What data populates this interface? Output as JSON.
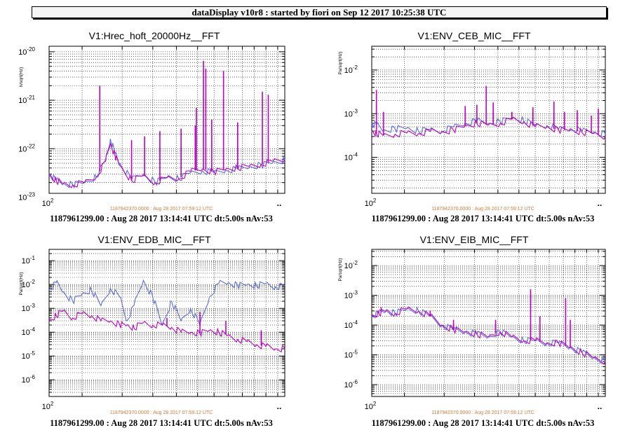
{
  "header": {
    "title": "dataDisplay v10r8 : started by fiori on Sep 12 2017 10:25:38 UTC"
  },
  "chart_data": [
    {
      "type": "line",
      "title": "V1:Hrec_hoft_20000Hz__FFT",
      "ylabel": "h/sqrt(Hz)",
      "yscale": "log",
      "ylim": [
        1.2e-23,
        1.3e-20
      ],
      "y_ticks": [
        "10^-23",
        "10^-22",
        "10^-21",
        "10^-20"
      ],
      "xscale": "log",
      "x_tick_label": "10^2",
      "x_end_label": "..",
      "grid": true,
      "reference_time": "1187942370.0000 : Aug 28 2017 07:59:12 UTC",
      "info": "1187961299.00 : Aug 28 2017 13:14:41 UTC dt:5.00s nAv:53",
      "series": [
        {
          "color": "#5b6be8",
          "x": [
            0,
            0.03,
            0.06,
            0.1,
            0.15,
            0.2,
            0.24,
            0.26,
            0.28,
            0.3,
            0.35,
            0.4,
            0.45,
            0.5,
            0.55,
            0.6,
            0.65,
            0.7,
            0.75,
            0.8,
            0.85,
            0.9,
            0.95,
            1.0
          ],
          "y": [
            3e-23,
            2.2e-23,
            1.9e-23,
            1.8e-23,
            2e-23,
            2.6e-23,
            6e-23,
            1.6e-22,
            8e-23,
            5e-23,
            2.3e-23,
            3e-23,
            2e-23,
            2.6e-23,
            2.4e-23,
            3.2e-23,
            3.5e-23,
            3.2e-23,
            3.6e-23,
            3.8e-23,
            4.2e-23,
            4.6e-23,
            5.2e-23,
            5.8e-23
          ]
        },
        {
          "color": "#c000c8",
          "x": [
            0,
            0.03,
            0.06,
            0.1,
            0.15,
            0.2,
            0.24,
            0.26,
            0.28,
            0.3,
            0.35,
            0.4,
            0.45,
            0.5,
            0.55,
            0.6,
            0.65,
            0.7,
            0.75,
            0.8,
            0.85,
            0.9,
            0.95,
            1.0
          ],
          "y": [
            3e-23,
            2.2e-23,
            1.9e-23,
            1.8e-23,
            2e-23,
            2.6e-23,
            5.5e-23,
            1.3e-22,
            7e-23,
            4.5e-23,
            2.2e-23,
            2.8e-23,
            2e-23,
            2.5e-23,
            2.4e-23,
            3.4e-23,
            3.8e-23,
            3.3e-23,
            3.8e-23,
            4e-23,
            4.4e-23,
            4.8e-23,
            5.5e-23,
            6e-23
          ]
        }
      ],
      "peaks": [
        {
          "x": 0.215,
          "y": 2e-21
        },
        {
          "x": 0.35,
          "y": 1.5e-22
        },
        {
          "x": 0.405,
          "y": 1.8e-22
        },
        {
          "x": 0.47,
          "y": 2.3e-22
        },
        {
          "x": 0.56,
          "y": 2.6e-22
        },
        {
          "x": 0.62,
          "y": 3e-22
        },
        {
          "x": 0.625,
          "y": 7e-22
        },
        {
          "x": 0.655,
          "y": 6.5e-21
        },
        {
          "x": 0.665,
          "y": 4.5e-21
        },
        {
          "x": 0.69,
          "y": 4e-22
        },
        {
          "x": 0.74,
          "y": 4e-21
        },
        {
          "x": 0.8,
          "y": 3.5e-22
        },
        {
          "x": 0.905,
          "y": 1.5e-21
        },
        {
          "x": 0.93,
          "y": 1.3e-21
        }
      ]
    },
    {
      "type": "line",
      "title": "V1:ENV_CEB_MIC__FFT",
      "ylabel": "Pa/sqrt(Hz)",
      "yscale": "log",
      "ylim": [
        1.5e-05,
        0.035
      ],
      "y_ticks": [
        "10^-4",
        "10^-3",
        "10^-2"
      ],
      "xscale": "log",
      "x_tick_label": "10^2",
      "x_end_label": "..",
      "grid": true,
      "reference_time": "1187942370.0000 : Aug 28 2017 07:59:12 UTC",
      "info": "1187961299.00 : Aug 28 2017 13:14:41 UTC dt:5.00s nAv:53",
      "series": [
        {
          "color": "#5b6be8",
          "x": [
            0,
            0.02,
            0.05,
            0.1,
            0.15,
            0.2,
            0.25,
            0.3,
            0.35,
            0.4,
            0.45,
            0.5,
            0.55,
            0.6,
            0.65,
            0.7,
            0.75,
            0.8,
            0.85,
            0.9,
            0.95,
            1.0
          ],
          "y": [
            0.0006,
            0.00055,
            0.00042,
            0.00045,
            0.00047,
            0.0004,
            0.00044,
            0.0004,
            0.0005,
            0.0006,
            0.00068,
            0.0006,
            0.00065,
            0.0008,
            0.0007,
            0.00055,
            0.00054,
            0.00045,
            0.00046,
            0.0004,
            0.00038,
            0.00034
          ]
        },
        {
          "color": "#c000c8",
          "x": [
            0,
            0.02,
            0.05,
            0.1,
            0.15,
            0.2,
            0.25,
            0.3,
            0.35,
            0.4,
            0.45,
            0.5,
            0.55,
            0.6,
            0.65,
            0.7,
            0.75,
            0.8,
            0.85,
            0.9,
            0.95,
            1.0
          ],
          "y": [
            0.0004,
            0.00035,
            0.00032,
            0.00034,
            0.00036,
            0.00035,
            0.00039,
            0.00038,
            0.00042,
            0.00052,
            0.0006,
            0.00055,
            0.0006,
            0.00075,
            0.00065,
            0.0005,
            0.0005,
            0.00042,
            0.00042,
            0.00038,
            0.00035,
            0.0003
          ]
        }
      ],
      "peaks": [
        {
          "x": 0.02,
          "y": 0.0035
        },
        {
          "x": 0.05,
          "y": 0.0011
        },
        {
          "x": 0.4,
          "y": 0.0015
        },
        {
          "x": 0.45,
          "y": 0.0016
        },
        {
          "x": 0.49,
          "y": 0.0043
        },
        {
          "x": 0.52,
          "y": 0.0018
        },
        {
          "x": 0.6,
          "y": 0.0011
        },
        {
          "x": 0.69,
          "y": 0.0014
        },
        {
          "x": 0.78,
          "y": 0.0019
        },
        {
          "x": 0.825,
          "y": 0.0011
        },
        {
          "x": 0.88,
          "y": 0.0012
        },
        {
          "x": 0.94,
          "y": 0.0009
        },
        {
          "x": 0.97,
          "y": 0.0013
        }
      ]
    },
    {
      "type": "line",
      "title": "V1:ENV_EDB_MIC__FFT",
      "ylabel": "Pa/sqrt(Hz)",
      "yscale": "log",
      "ylim": [
        2e-07,
        0.3
      ],
      "y_ticks": [
        "10^-6",
        "10^-5",
        "10^-4",
        "10^-3",
        "10^-2",
        "10^-1"
      ],
      "xscale": "log",
      "x_tick_label": "10^2",
      "x_end_label": "..",
      "grid": true,
      "reference_time": "1187942370.0000 : Aug 28 2017 07:59:12 UTC",
      "info": "1187961299.00 : Aug 28 2017 13:14:41 UTC dt:5.00s nAv:53",
      "series": [
        {
          "color": "#5b6be8",
          "x": [
            0,
            0.03,
            0.06,
            0.1,
            0.14,
            0.18,
            0.22,
            0.26,
            0.3,
            0.33,
            0.36,
            0.4,
            0.44,
            0.48,
            0.52,
            0.56,
            0.6,
            0.64,
            0.68,
            0.72,
            0.76,
            0.8,
            0.84,
            0.88,
            0.92,
            0.96,
            1.0
          ],
          "y": [
            0.006,
            0.012,
            0.005,
            0.002,
            0.004,
            0.006,
            0.0013,
            0.007,
            0.003,
            0.0003,
            0.0013,
            0.015,
            0.003,
            0.0002,
            0.002,
            0.0003,
            0.001,
            0.0002,
            0.003,
            0.011,
            0.012,
            0.009,
            0.01,
            0.009,
            0.011,
            0.008,
            0.009
          ]
        },
        {
          "color": "#c000c8",
          "x": [
            0,
            0.03,
            0.06,
            0.1,
            0.14,
            0.18,
            0.22,
            0.26,
            0.3,
            0.33,
            0.36,
            0.4,
            0.44,
            0.48,
            0.52,
            0.56,
            0.6,
            0.64,
            0.68,
            0.72,
            0.76,
            0.8,
            0.84,
            0.88,
            0.92,
            0.96,
            1.0
          ],
          "y": [
            0.0003,
            0.0005,
            0.0008,
            0.0004,
            0.0006,
            0.0005,
            0.0003,
            0.0003,
            0.0002,
            0.0002,
            0.00015,
            0.00025,
            0.0002,
            0.0002,
            0.00016,
            0.0001,
            0.0001,
            9e-05,
            0.00012,
            0.0001,
            7e-05,
            5e-05,
            4e-05,
            3e-05,
            2.5e-05,
            2e-05,
            2e-05
          ]
        }
      ],
      "peaks": [
        {
          "x": 0.5,
          "y": 0.0004
        },
        {
          "x": 0.64,
          "y": 0.0007
        },
        {
          "x": 0.75,
          "y": 0.0003
        },
        {
          "x": 0.9,
          "y": 0.00012
        }
      ]
    },
    {
      "type": "line",
      "title": "V1:ENV_EIB_MIC__FFT",
      "ylabel": "Pa/sqrt(Hz)",
      "yscale": "log",
      "ylim": [
        4e-07,
        0.035
      ],
      "y_ticks": [
        "10^-6",
        "10^-5",
        "10^-4",
        "10^-3",
        "10^-2"
      ],
      "xscale": "log",
      "x_tick_label": "10^2",
      "x_end_label": "..",
      "grid": true,
      "reference_time": "1187942370.0000 : Aug 28 2017 07:59:12 UTC",
      "info": "1187961299.00 : Aug 28 2017 13:14:41 UTC dt:5.00s nAv:53",
      "series": [
        {
          "color": "#5b6be8",
          "x": [
            0,
            0.03,
            0.06,
            0.1,
            0.15,
            0.2,
            0.25,
            0.3,
            0.35,
            0.4,
            0.45,
            0.5,
            0.55,
            0.6,
            0.65,
            0.7,
            0.75,
            0.8,
            0.85,
            0.9,
            0.95,
            1.0
          ],
          "y": [
            0.0002,
            0.00025,
            0.0003,
            0.00025,
            0.00035,
            0.0003,
            0.0002,
            0.0001,
            7e-05,
            6e-05,
            5e-05,
            4e-05,
            6e-05,
            4e-05,
            3e-05,
            3e-05,
            2.5e-05,
            2.5e-05,
            1.8e-05,
            1.2e-05,
            8e-06,
            6e-06
          ]
        },
        {
          "color": "#c000c8",
          "x": [
            0,
            0.03,
            0.06,
            0.1,
            0.15,
            0.2,
            0.25,
            0.3,
            0.35,
            0.4,
            0.45,
            0.5,
            0.55,
            0.6,
            0.65,
            0.7,
            0.75,
            0.8,
            0.85,
            0.9,
            0.95,
            1.0
          ],
          "y": [
            0.0002,
            0.00025,
            0.0003,
            0.00025,
            0.00035,
            0.0003,
            0.0002,
            0.0001,
            7e-05,
            6e-05,
            5e-05,
            4e-05,
            6e-05,
            4e-05,
            3e-05,
            3e-05,
            2.5e-05,
            2.5e-05,
            1.8e-05,
            1.2e-05,
            8e-06,
            6e-06
          ]
        }
      ],
      "peaks": [
        {
          "x": 0.04,
          "y": 0.0004
        },
        {
          "x": 0.25,
          "y": 0.0003
        },
        {
          "x": 0.35,
          "y": 0.00015
        },
        {
          "x": 0.53,
          "y": 0.00015
        },
        {
          "x": 0.68,
          "y": 0.0016
        },
        {
          "x": 0.72,
          "y": 0.0002
        },
        {
          "x": 0.83,
          "y": 0.0008
        },
        {
          "x": 0.85,
          "y": 0.00015
        }
      ]
    }
  ]
}
